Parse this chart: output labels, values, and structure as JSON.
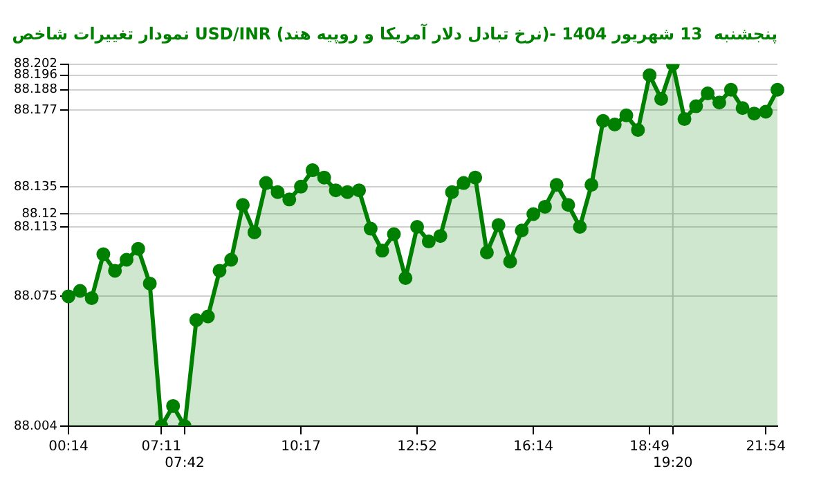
{
  "chart_data": {
    "type": "area",
    "title": "نمودار تغییرات شاخص USD/INR (نرخ تبادل دلار آمریکا و روپیه هند)- پنجشنبه  13 شهریور 1404",
    "categories": [
      "00:14",
      null,
      null,
      null,
      null,
      null,
      null,
      null,
      "07:11",
      null,
      "07:42",
      null,
      null,
      null,
      null,
      null,
      null,
      null,
      null,
      null,
      "10:17",
      null,
      null,
      null,
      null,
      null,
      null,
      null,
      null,
      null,
      "12:52",
      null,
      null,
      null,
      null,
      null,
      null,
      null,
      null,
      null,
      "16:14",
      null,
      null,
      null,
      null,
      null,
      null,
      null,
      null,
      null,
      "18:49",
      null,
      "19:20",
      null,
      null,
      null,
      null,
      null,
      null,
      null,
      "21:54",
      null
    ],
    "series": [
      {
        "color": "#008000",
        "values": [
          88.075,
          88.078,
          88.074,
          88.098,
          88.089,
          88.095,
          88.101,
          88.082,
          88.004,
          88.015,
          88.004,
          88.062,
          88.064,
          88.089,
          88.095,
          88.125,
          88.11,
          88.137,
          88.132,
          88.128,
          88.135,
          88.144,
          88.14,
          88.133,
          88.132,
          88.133,
          88.112,
          88.1,
          88.109,
          88.085,
          88.113,
          88.105,
          88.108,
          88.132,
          88.137,
          88.14,
          88.099,
          88.114,
          88.094,
          88.111,
          88.12,
          88.124,
          88.136,
          88.125,
          88.113,
          88.136,
          88.171,
          88.169,
          88.174,
          88.166,
          88.196,
          88.183,
          88.202,
          88.172,
          88.179,
          88.186,
          88.181,
          88.188,
          88.178,
          88.175,
          88.176,
          88.188
        ]
      }
    ],
    "ylim": [
      88.004,
      88.202
    ],
    "yticks": [
      88.004,
      88.075,
      88.113,
      88.12,
      88.135,
      88.177,
      88.188,
      88.196,
      88.202
    ],
    "grid": "y",
    "marker": "circle",
    "line_style": "solid",
    "ref_lines": [
      {
        "axis": "x",
        "value": "19:20",
        "color": "#c8c8c8"
      }
    ]
  }
}
